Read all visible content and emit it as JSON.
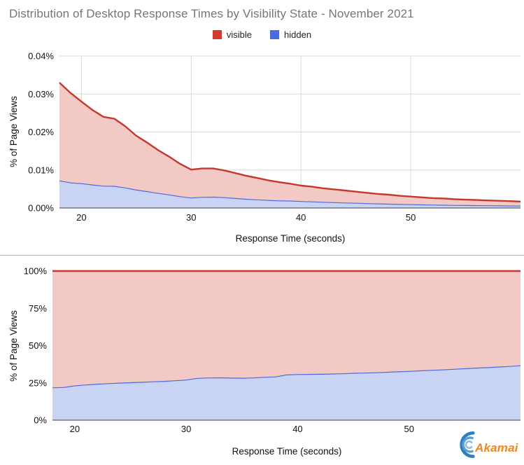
{
  "page": {
    "title": "Distribution of Desktop Response Times by Visibility State - November 2021",
    "background": "#ffffff"
  },
  "legend": {
    "position": "top-center",
    "items": [
      {
        "label": "visible",
        "color": "#cf3b30"
      },
      {
        "label": "hidden",
        "color": "#4d6bde"
      }
    ]
  },
  "footer": {
    "logo_text": "Akamai",
    "logo_color": "#ee8722",
    "logo_mark": "blue-crescent-wave-icon"
  },
  "chart_data": [
    {
      "type": "area",
      "stacked": true,
      "grid": true,
      "legend_position": "top",
      "xlabel": "Response Time (seconds)",
      "ylabel": "% of Page Views",
      "xlim": [
        18,
        60
      ],
      "ylim": [
        0,
        0.04
      ],
      "x_ticks": {
        "values": [
          20,
          30,
          40,
          50
        ],
        "labels": [
          "20",
          "30",
          "40",
          "50"
        ]
      },
      "y_ticks": {
        "values": [
          0,
          0.01,
          0.02,
          0.03,
          0.04
        ],
        "labels": [
          "0.00%",
          "0.01%",
          "0.02%",
          "0.03%",
          "0.04%"
        ]
      },
      "x": [
        18,
        19,
        20,
        21,
        22,
        23,
        24,
        25,
        26,
        27,
        28,
        29,
        30,
        31,
        32,
        33,
        34,
        35,
        36,
        37,
        38,
        39,
        40,
        41,
        42,
        43,
        44,
        45,
        46,
        47,
        48,
        49,
        50,
        51,
        52,
        53,
        54,
        55,
        56,
        57,
        58,
        59,
        60
      ],
      "series": [
        {
          "name": "hidden",
          "color": "#4d6bde",
          "fill": "#c9d4f4",
          "values": [
            0.00726,
            0.00673,
            0.00652,
            0.00617,
            0.00586,
            0.00583,
            0.0054,
            0.00483,
            0.00442,
            0.00395,
            0.00355,
            0.0031,
            0.00275,
            0.00294,
            0.00297,
            0.00284,
            0.00262,
            0.00241,
            0.00226,
            0.00212,
            0.00199,
            0.00196,
            0.00182,
            0.00174,
            0.00162,
            0.00153,
            0.00144,
            0.00136,
            0.00128,
            0.00119,
            0.00113,
            0.00105,
            0.00099,
            0.00094,
            0.00088,
            0.00085,
            0.00079,
            0.00077,
            0.00074,
            0.00071,
            0.00068,
            0.00065,
            0.00063
          ]
        },
        {
          "name": "visible",
          "color": "#c5382e",
          "fill": "#f2c9c5",
          "values": [
            0.02574,
            0.02357,
            0.02148,
            0.01963,
            0.01814,
            0.01767,
            0.0161,
            0.01417,
            0.01278,
            0.01125,
            0.00995,
            0.0085,
            0.00735,
            0.00746,
            0.00743,
            0.00706,
            0.00658,
            0.00609,
            0.00564,
            0.00518,
            0.00481,
            0.00444,
            0.00408,
            0.00386,
            0.00358,
            0.00337,
            0.00316,
            0.00294,
            0.00272,
            0.00251,
            0.00237,
            0.00215,
            0.00201,
            0.00186,
            0.00172,
            0.00165,
            0.00151,
            0.00143,
            0.00136,
            0.00129,
            0.00122,
            0.00115,
            0.00107
          ]
        }
      ]
    },
    {
      "type": "area",
      "stacked": true,
      "normalized_100pct": true,
      "grid": true,
      "xlabel": "Response Time (seconds)",
      "ylabel": "% of Page Views",
      "xlim": [
        18,
        60
      ],
      "ylim": [
        0,
        100
      ],
      "x_ticks": {
        "values": [
          20,
          30,
          40,
          50
        ],
        "labels": [
          "20",
          "30",
          "40",
          "50"
        ]
      },
      "y_ticks": {
        "values": [
          0,
          25,
          50,
          75,
          100
        ],
        "labels": [
          "0%",
          "25%",
          "50%",
          "75%",
          "100%"
        ]
      },
      "x": [
        18,
        19,
        20,
        21,
        22,
        23,
        24,
        25,
        26,
        27,
        28,
        29,
        30,
        31,
        32,
        33,
        34,
        35,
        36,
        37,
        38,
        39,
        40,
        41,
        42,
        43,
        44,
        45,
        46,
        47,
        48,
        49,
        50,
        51,
        52,
        53,
        54,
        55,
        56,
        57,
        58,
        59,
        60
      ],
      "series": [
        {
          "name": "hidden",
          "color": "#4d6bde",
          "fill": "#c9d4f4",
          "values": [
            22.0,
            22.2,
            23.3,
            23.9,
            24.4,
            24.8,
            25.1,
            25.4,
            25.7,
            26.0,
            26.3,
            26.7,
            27.2,
            28.3,
            28.6,
            28.7,
            28.5,
            28.4,
            28.6,
            29.0,
            29.3,
            30.6,
            30.9,
            31.0,
            31.1,
            31.2,
            31.4,
            31.7,
            31.9,
            32.1,
            32.4,
            32.7,
            33.0,
            33.4,
            33.7,
            34.0,
            34.4,
            34.8,
            35.2,
            35.5,
            35.9,
            36.3,
            36.8
          ]
        },
        {
          "name": "visible",
          "color": "#c5382e",
          "fill": "#f2c9c5",
          "values": [
            78.0,
            77.8,
            76.7,
            76.1,
            75.6,
            75.2,
            74.9,
            74.6,
            74.3,
            74.0,
            73.7,
            73.3,
            72.8,
            71.7,
            71.4,
            71.3,
            71.5,
            71.6,
            71.4,
            71.0,
            70.7,
            69.4,
            69.1,
            69.0,
            68.9,
            68.8,
            68.6,
            68.3,
            68.1,
            67.9,
            67.6,
            67.3,
            67.0,
            66.6,
            66.3,
            66.0,
            65.6,
            65.2,
            64.8,
            64.5,
            64.1,
            63.7,
            63.2
          ]
        }
      ]
    }
  ]
}
